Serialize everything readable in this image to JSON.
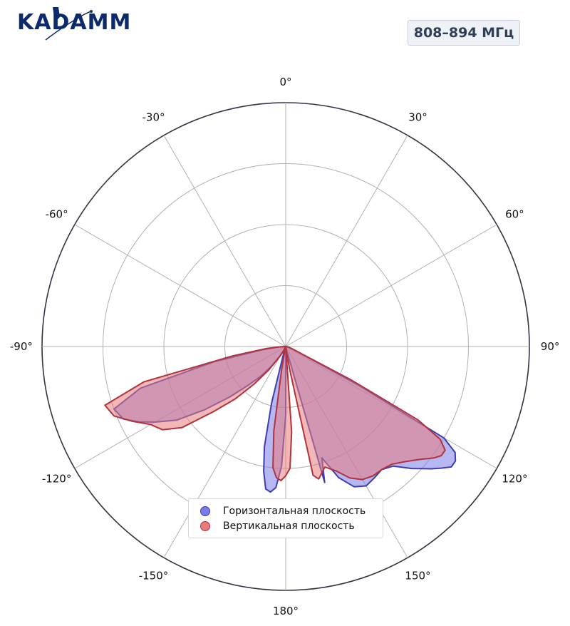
{
  "header": {
    "logo_text": "KADAMM",
    "frequency_badge": "808–894 МГц"
  },
  "colors": {
    "horizontal_fill": "#7b7be8",
    "horizontal_stroke": "#3d3db0",
    "vertical_fill": "#e87b7b",
    "vertical_stroke": "#b0333d",
    "grid": "#b0b0b0",
    "outer_circle": "#333344",
    "badge_bg": "#eef1f6",
    "logo": "#0d2a6b"
  },
  "chart_data": {
    "type": "polar",
    "theta_zero": "top",
    "theta_direction": "clockwise",
    "angular_ticks": [
      "0°",
      "30°",
      "60°",
      "90°",
      "120°",
      "150°",
      "180°",
      "-150°",
      "-120°",
      "-90°",
      "-60°",
      "-30°"
    ],
    "angular_tick_values": [
      0,
      30,
      60,
      90,
      120,
      150,
      180,
      -150,
      -120,
      -90,
      -60,
      -30
    ],
    "radial_range": [
      0,
      1
    ],
    "radial_grid": [
      0.25,
      0.5,
      0.75,
      1.0
    ],
    "grid": true,
    "legend_position": "bottom-center",
    "series": [
      {
        "name": "Горизонтальная плоскость",
        "theta": [
          90,
          100,
          110,
          118,
          120,
          122,
          124,
          126,
          128,
          130,
          134,
          138,
          142,
          146,
          150,
          154,
          158,
          162,
          164,
          166,
          168,
          170,
          172,
          174,
          176,
          178,
          180,
          182,
          184,
          186,
          188,
          190,
          192,
          194,
          196,
          198,
          200,
          204,
          208,
          212,
          216,
          220,
          224,
          228,
          232,
          236,
          240,
          243,
          246,
          250,
          254,
          258,
          262,
          266,
          270
        ],
        "r": [
          0.0,
          0.01,
          0.03,
          0.34,
          0.75,
          0.82,
          0.84,
          0.84,
          0.81,
          0.78,
          0.72,
          0.66,
          0.64,
          0.65,
          0.66,
          0.64,
          0.58,
          0.48,
          0.58,
          0.02,
          0.01,
          0.0,
          0.0,
          0.0,
          0.0,
          0.01,
          0.28,
          0.49,
          0.58,
          0.6,
          0.59,
          0.52,
          0.42,
          0.24,
          0.04,
          0.0,
          0.0,
          0.0,
          0.02,
          0.05,
          0.1,
          0.16,
          0.22,
          0.31,
          0.42,
          0.54,
          0.62,
          0.68,
          0.73,
          0.75,
          0.62,
          0.3,
          0.1,
          0.03,
          0.0
        ]
      },
      {
        "name": "Вертикальная плоскость",
        "theta": [
          90,
          100,
          110,
          117,
          119,
          121,
          123,
          125,
          127,
          130,
          134,
          138,
          142,
          146,
          150,
          154,
          158,
          162,
          166,
          168,
          170,
          172,
          174,
          176,
          178,
          180,
          182,
          184,
          186,
          188,
          190,
          192,
          194,
          196,
          198,
          200,
          204,
          208,
          212,
          216,
          220,
          224,
          228,
          232,
          236,
          240,
          244,
          248,
          252,
          256,
          260,
          264,
          268,
          270
        ],
        "r": [
          0.0,
          0.01,
          0.03,
          0.3,
          0.62,
          0.74,
          0.78,
          0.78,
          0.76,
          0.72,
          0.68,
          0.65,
          0.64,
          0.64,
          0.63,
          0.6,
          0.55,
          0.52,
          0.56,
          0.54,
          0.1,
          0.03,
          0.0,
          0.35,
          0.5,
          0.53,
          0.55,
          0.54,
          0.5,
          0.35,
          0.1,
          0.02,
          0.0,
          0.0,
          0.0,
          0.0,
          0.01,
          0.03,
          0.06,
          0.12,
          0.2,
          0.3,
          0.4,
          0.54,
          0.61,
          0.64,
          0.7,
          0.76,
          0.78,
          0.6,
          0.22,
          0.08,
          0.02,
          0.0
        ]
      }
    ]
  }
}
